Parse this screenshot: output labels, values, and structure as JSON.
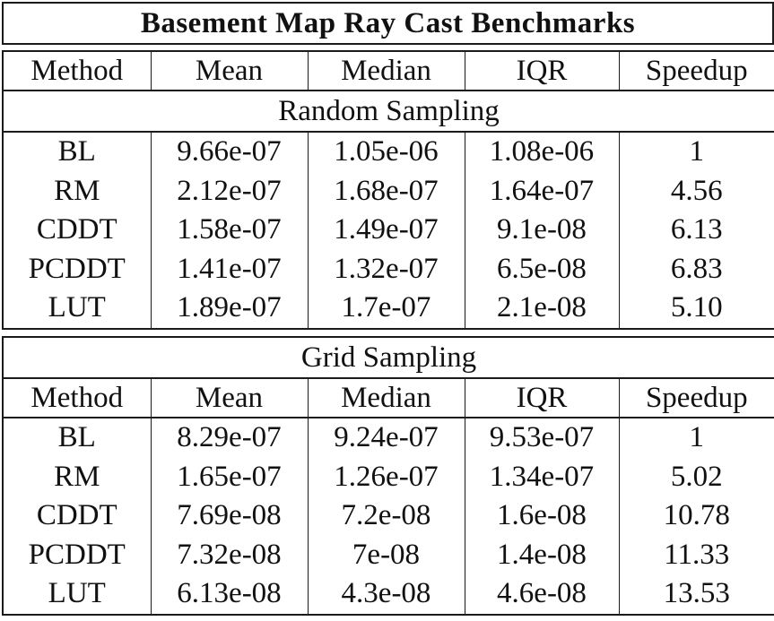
{
  "title": "Basement Map Ray Cast Benchmarks",
  "columns": [
    "Method",
    "Mean",
    "Median",
    "IQR",
    "Speedup"
  ],
  "sections": [
    {
      "name": "Random Sampling",
      "rows": [
        [
          "BL",
          "9.66e-07",
          "1.05e-06",
          "1.08e-06",
          "1"
        ],
        [
          "RM",
          "2.12e-07",
          "1.68e-07",
          "1.64e-07",
          "4.56"
        ],
        [
          "CDDT",
          "1.58e-07",
          "1.49e-07",
          "9.1e-08",
          "6.13"
        ],
        [
          "PCDDT",
          "1.41e-07",
          "1.32e-07",
          "6.5e-08",
          "6.83"
        ],
        [
          "LUT",
          "1.89e-07",
          "1.7e-07",
          "2.1e-08",
          "5.10"
        ]
      ]
    },
    {
      "name": "Grid Sampling",
      "rows": [
        [
          "BL",
          "8.29e-07",
          "9.24e-07",
          "9.53e-07",
          "1"
        ],
        [
          "RM",
          "1.65e-07",
          "1.26e-07",
          "1.34e-07",
          "5.02"
        ],
        [
          "CDDT",
          "7.69e-08",
          "7.2e-08",
          "1.6e-08",
          "10.78"
        ],
        [
          "PCDDT",
          "7.32e-08",
          "7e-08",
          "1.4e-08",
          "11.33"
        ],
        [
          "LUT",
          "6.13e-08",
          "4.3e-08",
          "4.6e-08",
          "13.53"
        ]
      ]
    }
  ]
}
